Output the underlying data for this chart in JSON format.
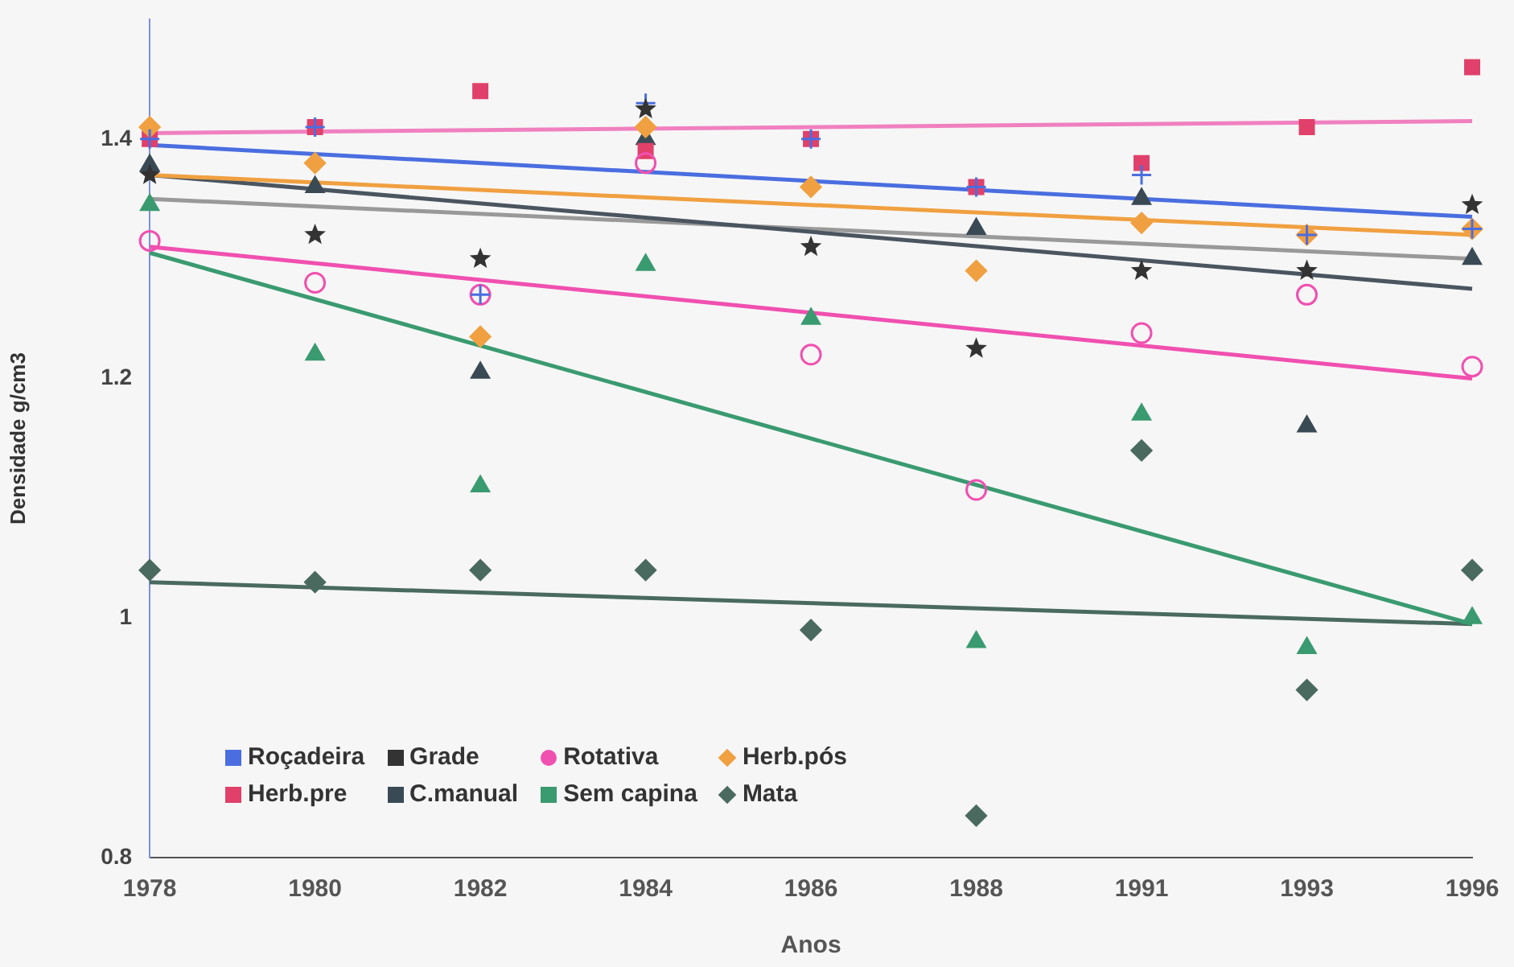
{
  "chart_data": {
    "type": "scatter",
    "xlabel": "Anos",
    "ylabel": "Densidade g/cm3",
    "categories": [
      "1978",
      "1980",
      "1982",
      "1984",
      "1986",
      "1988",
      "1991",
      "1993",
      "1996"
    ],
    "ylim": [
      0.8,
      1.5
    ],
    "yticks": [
      0.8,
      1,
      1.2,
      1.4
    ],
    "grid": false,
    "legend": "bottom left",
    "series": [
      {
        "name": "Roçadeira",
        "color": "#4a6ee0",
        "marker": "cross",
        "values": [
          1.4,
          1.41,
          1.27,
          1.43,
          1.4,
          1.36,
          1.37,
          1.32,
          1.325
        ]
      },
      {
        "name": "Grade",
        "color": "#333333",
        "marker": "star",
        "values": [
          1.37,
          1.32,
          1.3,
          1.425,
          1.31,
          1.225,
          1.29,
          1.29,
          1.345
        ]
      },
      {
        "name": "Rotativa",
        "color": "#f050b0",
        "marker": "circle",
        "values": [
          1.315,
          1.28,
          1.27,
          1.38,
          1.22,
          1.107,
          1.238,
          1.27,
          1.21
        ]
      },
      {
        "name": "Herb.pós",
        "color": "#f0a040",
        "marker": "diamond",
        "values": [
          1.41,
          1.38,
          1.235,
          1.41,
          1.36,
          1.29,
          1.33,
          1.32,
          1.325
        ]
      },
      {
        "name": "Herb.pre",
        "color": "#e0406a",
        "marker": "square",
        "values": [
          1.4,
          1.41,
          1.44,
          1.39,
          1.4,
          1.36,
          1.38,
          1.41,
          1.46
        ]
      },
      {
        "name": "C.manual",
        "color": "#3a4a55",
        "marker": "triangle",
        "values": [
          1.378,
          1.36,
          1.205,
          1.4,
          null,
          1.325,
          1.35,
          1.16,
          1.3
        ]
      },
      {
        "name": "Sem capina",
        "color": "#3a9a70",
        "marker": "triangle",
        "values": [
          1.345,
          1.22,
          1.11,
          1.295,
          1.25,
          0.98,
          1.17,
          0.975,
          1.0
        ]
      },
      {
        "name": "Mata",
        "color": "#4a6a60",
        "marker": "diamond",
        "values": [
          1.04,
          1.03,
          1.04,
          1.04,
          0.99,
          0.835,
          1.14,
          0.94,
          1.04
        ]
      },
      {
        "type": "line",
        "color": "#f080c0",
        "marker": "none",
        "values": [
          1.405,
          null,
          null,
          null,
          null,
          null,
          null,
          null,
          1.415
        ]
      },
      {
        "type": "line",
        "color": "#4a6ee0",
        "marker": "none",
        "values": [
          1.395,
          null,
          null,
          null,
          null,
          null,
          null,
          null,
          1.335
        ]
      },
      {
        "type": "line",
        "color": "#f0a040",
        "marker": "none",
        "values": [
          1.37,
          null,
          null,
          null,
          null,
          null,
          null,
          null,
          1.32
        ]
      },
      {
        "type": "line",
        "color": "#4a5560",
        "marker": "none",
        "values": [
          1.37,
          null,
          null,
          null,
          null,
          null,
          null,
          null,
          1.275
        ]
      },
      {
        "type": "line",
        "color": "#999999",
        "marker": "none",
        "values": [
          1.35,
          null,
          null,
          null,
          null,
          null,
          null,
          null,
          1.3
        ]
      },
      {
        "type": "line",
        "color": "#f050b0",
        "marker": "none",
        "values": [
          1.31,
          null,
          null,
          null,
          null,
          null,
          null,
          null,
          1.2
        ]
      },
      {
        "type": "line",
        "color": "#3a9a70",
        "marker": "none",
        "values": [
          1.305,
          null,
          null,
          null,
          null,
          null,
          null,
          null,
          0.995
        ]
      },
      {
        "type": "line",
        "color": "#4a6a60",
        "marker": "none",
        "values": [
          1.03,
          null,
          null,
          null,
          null,
          null,
          null,
          null,
          0.995
        ]
      }
    ]
  }
}
